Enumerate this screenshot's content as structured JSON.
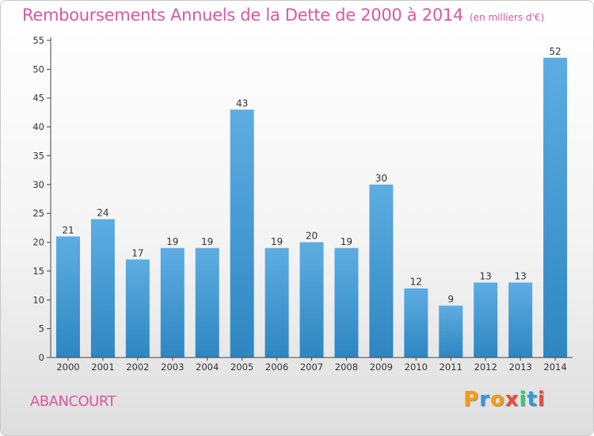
{
  "header": {
    "title": "Remboursements Annuels de la Dette de 2000 à 2014",
    "unit_note": "(en milliers d'€)"
  },
  "footer": {
    "commune": "ABANCOURT",
    "brand": "Proxiti",
    "brand_letters": [
      {
        "char": "P",
        "color": "#f39c12"
      },
      {
        "char": "r",
        "color": "#3498db"
      },
      {
        "char": "o",
        "color": "#f39c12"
      },
      {
        "char": "x",
        "color": "#e74c3c"
      },
      {
        "char": "i",
        "color": "#2ecc71"
      },
      {
        "char": "t",
        "color": "#3498db"
      },
      {
        "char": "i",
        "color": "#e74c3c"
      }
    ]
  },
  "colors": {
    "title": "#e0569a",
    "bar_light": "#5dade2",
    "bar_dark": "#2e86c1"
  },
  "chart_data": {
    "type": "bar",
    "categories": [
      "2000",
      "2001",
      "2002",
      "2003",
      "2004",
      "2005",
      "2006",
      "2007",
      "2008",
      "2009",
      "2010",
      "2011",
      "2012",
      "2013",
      "2014"
    ],
    "values": [
      21,
      24,
      17,
      19,
      19,
      43,
      19,
      20,
      19,
      30,
      12,
      9,
      13,
      13,
      52
    ],
    "ylim": [
      0,
      55
    ],
    "yticks": [
      0,
      5,
      10,
      15,
      20,
      25,
      30,
      35,
      40,
      45,
      50,
      55
    ],
    "grid": false,
    "legend": "none"
  }
}
